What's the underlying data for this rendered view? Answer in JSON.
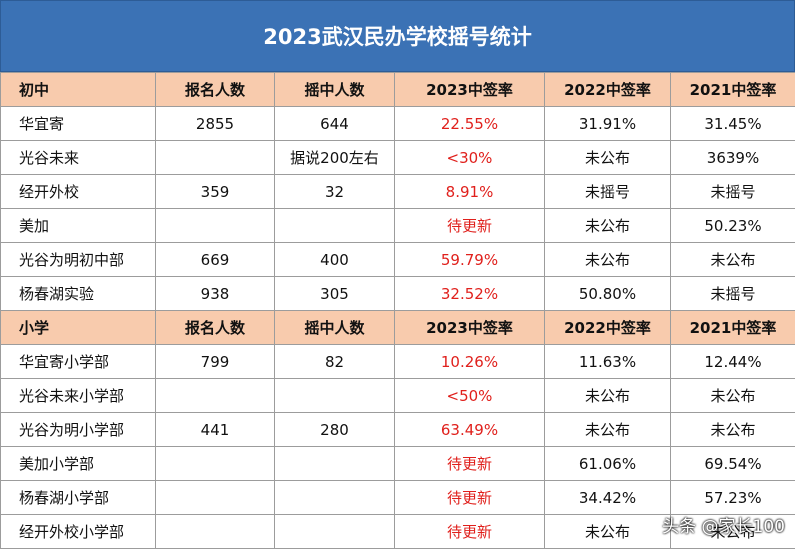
{
  "title": "2023武汉民办学校摇号统计",
  "colors": {
    "header_bg": "#3b72b5",
    "section_bg": "#f8cbad",
    "highlight": "#e0201c"
  },
  "sections": [
    {
      "header": [
        "初中",
        "报名人数",
        "摇中人数",
        "2023中签率",
        "2022中签率",
        "2021中签率"
      ],
      "rows": [
        [
          "华宜寄",
          "2855",
          "644",
          "22.55%",
          "31.91%",
          "31.45%"
        ],
        [
          "光谷未来",
          "",
          "据说200左右",
          "<30%",
          "未公布",
          "3639%"
        ],
        [
          "经开外校",
          "359",
          "32",
          "8.91%",
          "未摇号",
          "未摇号"
        ],
        [
          "美加",
          "",
          "",
          "待更新",
          "未公布",
          "50.23%"
        ],
        [
          "光谷为明初中部",
          "669",
          "400",
          "59.79%",
          "未公布",
          "未公布"
        ],
        [
          "杨春湖实验",
          "938",
          "305",
          "32.52%",
          "50.80%",
          "未摇号"
        ]
      ]
    },
    {
      "header": [
        "小学",
        "报名人数",
        "摇中人数",
        "2023中签率",
        "2022中签率",
        "2021中签率"
      ],
      "rows": [
        [
          "华宜寄小学部",
          "799",
          "82",
          "10.26%",
          "11.63%",
          "12.44%"
        ],
        [
          "光谷未来小学部",
          "",
          "",
          "<50%",
          "未公布",
          "未公布"
        ],
        [
          "光谷为明小学部",
          "441",
          "280",
          "63.49%",
          "未公布",
          "未公布"
        ],
        [
          "美加小学部",
          "",
          "",
          "待更新",
          "61.06%",
          "69.54%"
        ],
        [
          "杨春湖小学部",
          "",
          "",
          "待更新",
          "34.42%",
          "57.23%"
        ],
        [
          "经开外校小学部",
          "",
          "",
          "待更新",
          "未公布",
          "未公布"
        ]
      ]
    }
  ],
  "watermark": "头条 @家长100"
}
